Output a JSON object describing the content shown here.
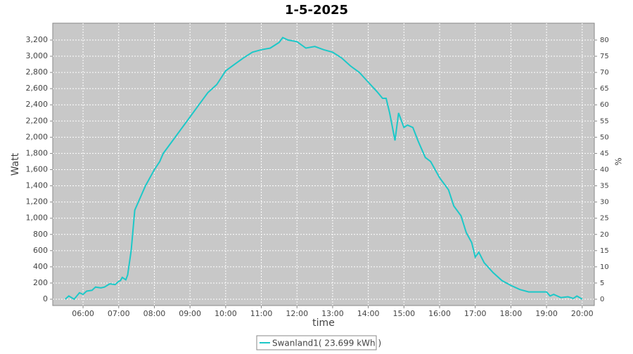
{
  "chart_data": {
    "type": "line",
    "title": "1-5-2025",
    "xlabel": "time",
    "ylabel": "Watt",
    "y2label": "%",
    "x": [
      5.5,
      5.6,
      5.75,
      5.9,
      6.0,
      6.1,
      6.25,
      6.35,
      6.5,
      6.6,
      6.75,
      6.9,
      7.0,
      7.05,
      7.1,
      7.2,
      7.25,
      7.35,
      7.45,
      7.6,
      7.75,
      8.0,
      8.15,
      8.25,
      8.5,
      8.75,
      9.0,
      9.25,
      9.5,
      9.75,
      10.0,
      10.25,
      10.5,
      10.75,
      11.0,
      11.25,
      11.5,
      11.6,
      11.75,
      12.0,
      12.25,
      12.5,
      12.75,
      13.0,
      13.25,
      13.5,
      13.75,
      14.0,
      14.25,
      14.4,
      14.5,
      14.6,
      14.75,
      14.85,
      15.0,
      15.1,
      15.25,
      15.4,
      15.6,
      15.75,
      16.0,
      16.25,
      16.4,
      16.6,
      16.75,
      16.9,
      17.0,
      17.1,
      17.25,
      17.5,
      17.75,
      18.0,
      18.25,
      18.5,
      19.0,
      19.1,
      19.2,
      19.4,
      19.6,
      19.75,
      19.85,
      20.0
    ],
    "series": [
      {
        "name": "Swanland1( 23.699 kWh )",
        "color": "#1cc8c8",
        "values": [
          0,
          40,
          0,
          80,
          60,
          100,
          110,
          150,
          140,
          150,
          190,
          180,
          220,
          230,
          270,
          240,
          300,
          600,
          1100,
          1250,
          1400,
          1600,
          1700,
          1800,
          1950,
          2100,
          2250,
          2400,
          2550,
          2650,
          2820,
          2900,
          2980,
          3050,
          3080,
          3100,
          3170,
          3230,
          3200,
          3180,
          3100,
          3120,
          3080,
          3050,
          2980,
          2880,
          2800,
          2680,
          2560,
          2480,
          2480,
          2300,
          1960,
          2300,
          2120,
          2150,
          2120,
          1950,
          1750,
          1700,
          1500,
          1350,
          1150,
          1030,
          820,
          700,
          520,
          580,
          450,
          330,
          230,
          170,
          120,
          90,
          90,
          40,
          60,
          20,
          30,
          10,
          40,
          0
        ]
      }
    ],
    "xlim": [
      5.15,
      20.34
    ],
    "xticks": [
      {
        "value": 6,
        "label": "06:00"
      },
      {
        "value": 7,
        "label": "07:00"
      },
      {
        "value": 8,
        "label": "08:00"
      },
      {
        "value": 9,
        "label": "09:00"
      },
      {
        "value": 10,
        "label": "10:00"
      },
      {
        "value": 11,
        "label": "11:00"
      },
      {
        "value": 12,
        "label": "12:00"
      },
      {
        "value": 13,
        "label": "13:00"
      },
      {
        "value": 14,
        "label": "14:00"
      },
      {
        "value": 15,
        "label": "15:00"
      },
      {
        "value": 16,
        "label": "16:00"
      },
      {
        "value": 17,
        "label": "17:00"
      },
      {
        "value": 18,
        "label": "18:00"
      },
      {
        "value": 19,
        "label": "19:00"
      },
      {
        "value": 20,
        "label": "20:00"
      }
    ],
    "ylim": [
      -78,
      3408
    ],
    "yticks": [
      0,
      200,
      400,
      600,
      800,
      {
        "value": 1000,
        "label": "1,000"
      },
      {
        "value": 1200,
        "label": "1,200"
      },
      {
        "value": 1400,
        "label": "1,400"
      },
      {
        "value": 1600,
        "label": "1,600"
      },
      {
        "value": 1800,
        "label": "1,800"
      },
      {
        "value": 2000,
        "label": "2,000"
      },
      {
        "value": 2200,
        "label": "2,200"
      },
      {
        "value": 2400,
        "label": "2,400"
      },
      {
        "value": 2600,
        "label": "2,600"
      },
      {
        "value": 2800,
        "label": "2,800"
      },
      {
        "value": 3000,
        "label": "3,000"
      },
      {
        "value": 3200,
        "label": "3,200"
      }
    ],
    "y2lim": [
      -1.95,
      85.2
    ],
    "y2ticks": [
      0,
      5,
      10,
      15,
      20,
      25,
      30,
      35,
      40,
      45,
      50,
      55,
      60,
      65,
      70,
      75,
      80
    ],
    "grid": true,
    "legend": "bottom"
  }
}
